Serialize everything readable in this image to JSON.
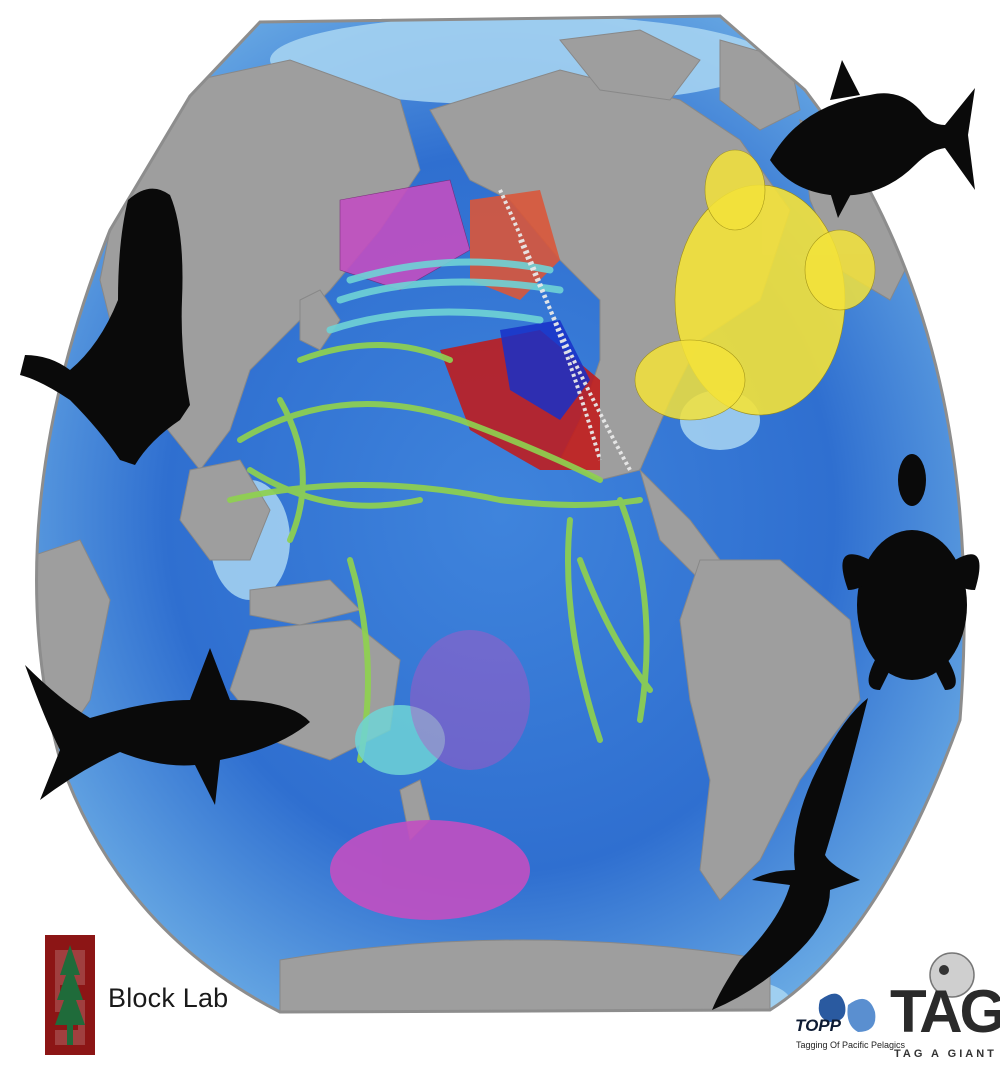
{
  "map": {
    "colors": {
      "ocean_deep": "#1f5fc4",
      "ocean_mid": "#3f84dc",
      "ocean_shelf": "#a9d6f2",
      "land": "#9e9e9e",
      "track_yellow": "#f4e33a",
      "track_magenta": "#c24fc2",
      "track_cyan": "#6fd3d6",
      "track_green": "#8fd14f",
      "track_red": "#c21a1a",
      "track_blue": "#1730c8",
      "track_orange": "#d9573a",
      "track_white": "#e9e9e9",
      "silhouette": "#0a0a0a",
      "stanford_red": "#8c1515"
    }
  },
  "silhouettes": [
    "tuna",
    "elephant-seal",
    "sea-turtle",
    "white-shark",
    "albatross"
  ],
  "logos": {
    "block_lab": "Block Lab",
    "topp_mark": "TOPP",
    "topp_full": "Tagging Of Pacific Pelagics",
    "tag_mark": "TAG",
    "tag_full": "TAG A GIANT"
  }
}
